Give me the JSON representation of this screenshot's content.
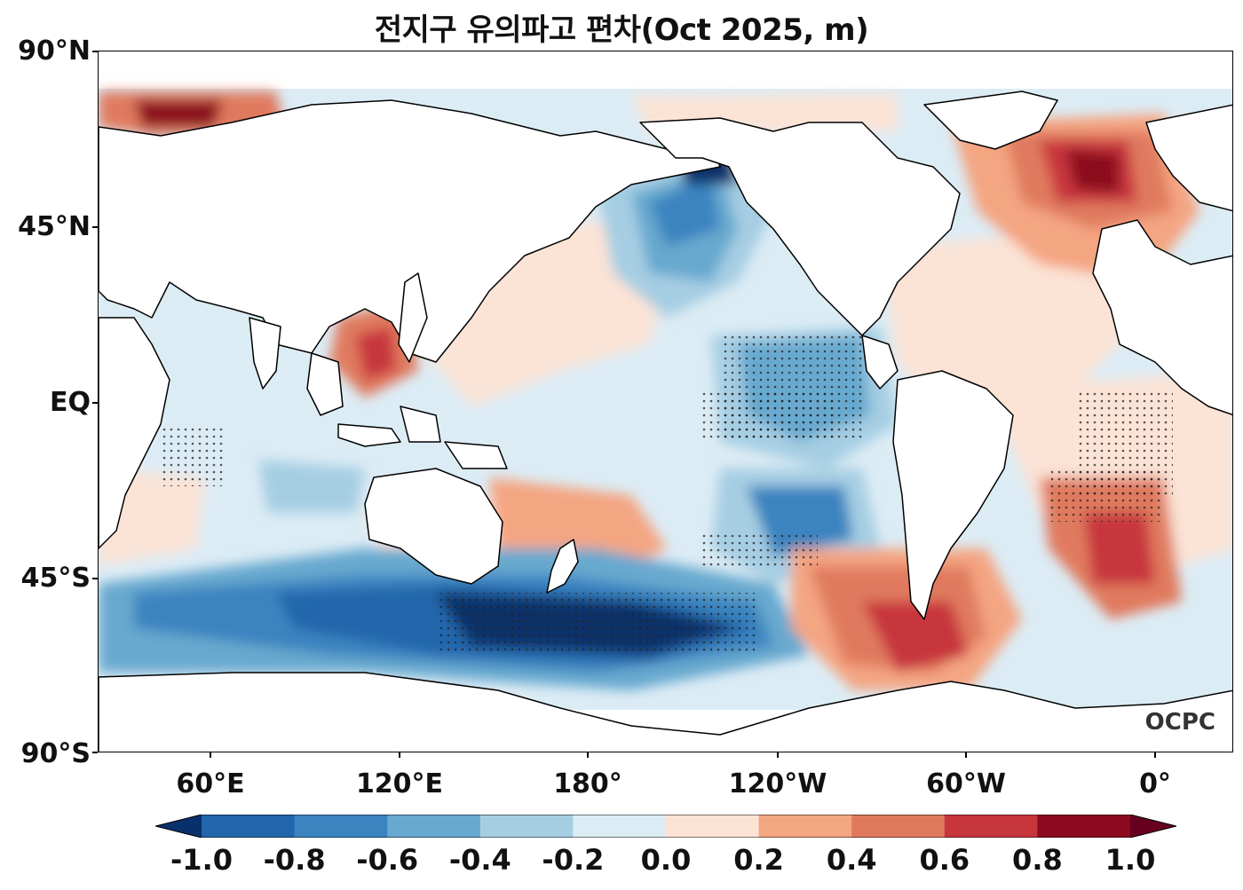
{
  "title": "전지구 유의파고 편차(Oct 2025, m)",
  "brand": "OCPC",
  "lat_labels": [
    "90°N",
    "45°N",
    "EQ",
    "45°S",
    "90°S"
  ],
  "lon_labels": [
    "60°E",
    "120°E",
    "180°",
    "120°W",
    "60°W",
    "0°"
  ],
  "colorbar": {
    "labels": [
      "-1.0",
      "-0.8",
      "-0.6",
      "-0.4",
      "-0.2",
      "0.0",
      "0.2",
      "0.4",
      "0.6",
      "0.8",
      "1.0"
    ],
    "colors": [
      "#08306b",
      "#2166ac",
      "#3a84c0",
      "#67a9cf",
      "#a6cee3",
      "#dcecf5",
      "#fbe3d6",
      "#f4a582",
      "#e07a5f",
      "#c7353d",
      "#8b0a1f",
      "#67001f"
    ]
  },
  "colors": {
    "negative_strong": "#08306b",
    "negative": "#3a84c0",
    "neutral_neg": "#dcecf5",
    "neutral_pos": "#fbe3d6",
    "positive": "#e07a5f",
    "positive_strong": "#8b0a1f",
    "land": "#ffffff",
    "coast": "#000000"
  }
}
